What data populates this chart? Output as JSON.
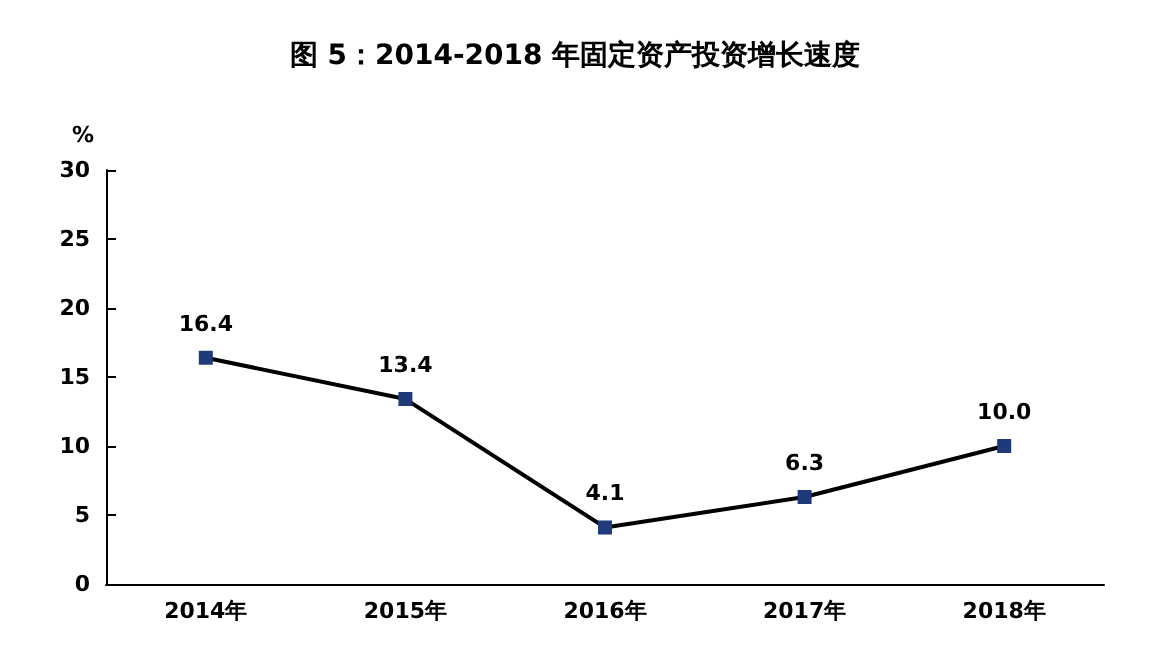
{
  "chart_data": {
    "type": "line",
    "title": "图 5：2014-2018 年固定资产投资增长速度",
    "ylabel": "%",
    "categories": [
      "2014年",
      "2015年",
      "2016年",
      "2017年",
      "2018年"
    ],
    "series": [
      {
        "color": "#000000",
        "values": [
          16.4,
          13.4,
          4.1,
          6.3,
          10.0
        ],
        "value_labels": [
          "16.4",
          "13.4",
          "4.1",
          "6.3",
          "10.0"
        ]
      }
    ],
    "ylim": [
      0,
      30
    ],
    "yticks": [
      0,
      5,
      10,
      15,
      20,
      25,
      30
    ],
    "grid": false,
    "marker": "square",
    "line_style": "solid"
  }
}
